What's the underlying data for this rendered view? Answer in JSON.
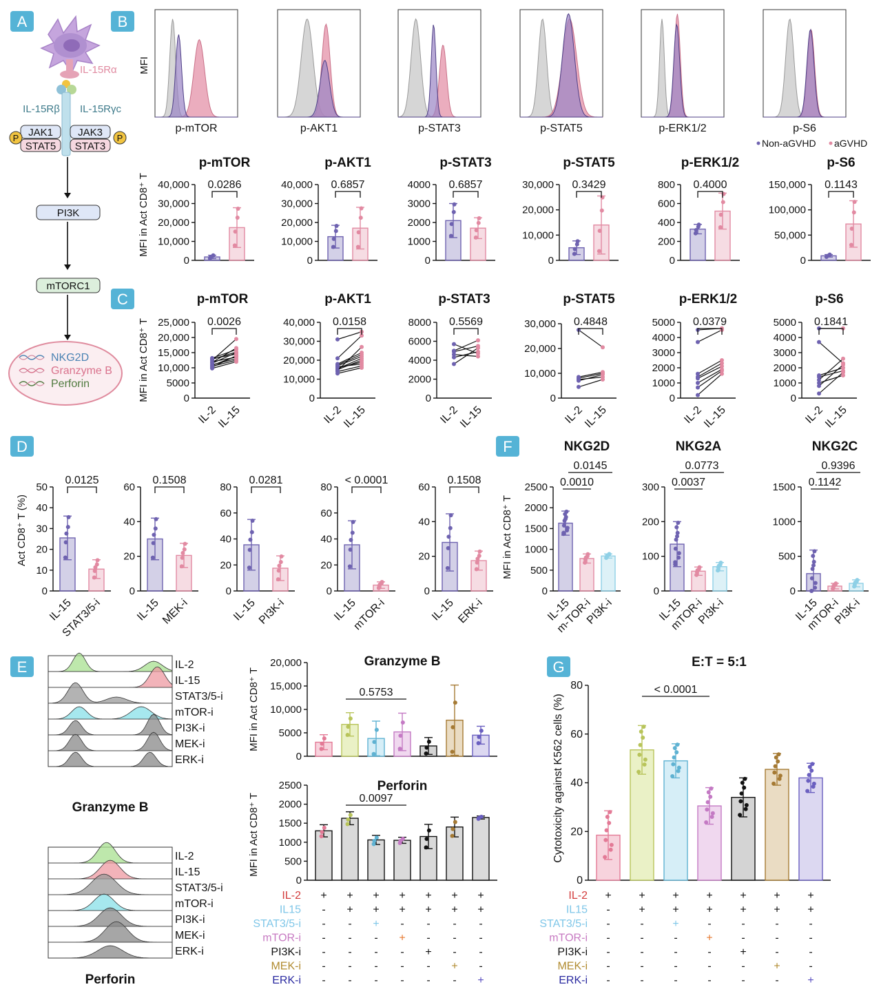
{
  "panel_letters": [
    "A",
    "B",
    "C",
    "D",
    "E",
    "F",
    "G"
  ],
  "colors": {
    "nonagvhd": "#6e62b0",
    "agvhd": "#e28aa2",
    "isotype": "#c8c8c8",
    "il2": "#e8a2b7",
    "il15": "#d3df9a",
    "stat": "#8fd0e6",
    "mtor": "#d9a7d8",
    "pi3k": "#222222",
    "mek": "#b8893e",
    "erk": "#7b6fc4",
    "panel_badge": "#55b3d6"
  },
  "panel_a": {
    "il15ra": "IL-15Rα",
    "il15rb": "IL-15Rβ",
    "il15rgc": "IL-15Rγc",
    "jak1": "JAK1",
    "jak3": "JAK3",
    "stat5": "STAT5",
    "stat3": "STAT3",
    "p": "P",
    "pi3k": "PI3K",
    "mtorc1": "mTORC1",
    "genes": [
      "NKG2D",
      "Granzyme B",
      "Perforin"
    ]
  },
  "panel_b": {
    "hist_ylabel": "MFI",
    "legend": [
      "Non-aGVHD",
      "aGVHD"
    ],
    "bar_ylabel": "MFI in Act CD8⁺ T",
    "hist_labels": [
      "p-mTOR",
      "p-AKT1",
      "p-STAT3",
      "p-STAT5",
      "p-ERK1/2",
      "p-S6"
    ]
  },
  "panel_c": {
    "ylabel": "MFI in Act CD8⁺ T",
    "xcats": [
      "IL-2",
      "IL-15"
    ]
  },
  "panel_d": {
    "ylabel": "Act CD8⁺ T (%)"
  },
  "panel_e": {
    "row_labels": [
      "IL-2",
      "IL-15",
      "STAT3/5-i",
      "mTOR-i",
      "PI3K-i",
      "MEK-i",
      "ERK-i"
    ],
    "hist_titles": [
      "Granzyme B",
      "Perforin"
    ],
    "ylabel": "MFI in Act CD8⁺ T",
    "matrix_rows": [
      "IL-2",
      "IL15",
      "STAT3/5-i",
      "mTOR-i",
      "PI3K-i",
      "MEK-i",
      "ERK-i"
    ],
    "matrix": [
      [
        "+",
        "+",
        "+",
        "+",
        "+",
        "+",
        "+"
      ],
      [
        "-",
        "+",
        "+",
        "+",
        "+",
        "+",
        "+"
      ],
      [
        "-",
        "-",
        "+",
        "-",
        "-",
        "-",
        "-"
      ],
      [
        "-",
        "-",
        "-",
        "+",
        "-",
        "-",
        "-"
      ],
      [
        "-",
        "-",
        "-",
        "-",
        "+",
        "-",
        "-"
      ],
      [
        "-",
        "-",
        "-",
        "-",
        "-",
        "+",
        "-"
      ],
      [
        "-",
        "-",
        "-",
        "-",
        "-",
        "-",
        "+"
      ]
    ]
  },
  "panel_f": {
    "ylabel": "MFI in Act CD8⁺ T"
  },
  "panel_g": {
    "title": "E:T = 5:1",
    "ylabel": "Cytotoxicity against K562 cells (%)"
  },
  "chart_data": [
    {
      "id": "B-mTOR",
      "type": "bar",
      "title": "p-mTOR",
      "categories": [
        "Non-aGVHD",
        "aGVHD"
      ],
      "values": [
        1800,
        17300
      ],
      "errors": [
        900,
        10500
      ],
      "ylim": [
        0,
        40000
      ],
      "yticks": [
        "0",
        "10,000",
        "20,000",
        "30,000",
        "40,000"
      ],
      "annotations": [
        "0.0286"
      ]
    },
    {
      "id": "B-AKT1",
      "type": "bar",
      "title": "p-AKT1",
      "categories": [
        "Non-aGVHD",
        "aGVHD"
      ],
      "values": [
        12500,
        17000
      ],
      "errors": [
        6000,
        11000
      ],
      "ylim": [
        0,
        40000
      ],
      "yticks": [
        "0",
        "10,000",
        "20,000",
        "30,000",
        "40,000"
      ],
      "annotations": [
        "0.6857"
      ]
    },
    {
      "id": "B-STAT3",
      "type": "bar",
      "title": "p-STAT3",
      "categories": [
        "Non-aGVHD",
        "aGVHD"
      ],
      "values": [
        2100,
        1700
      ],
      "errors": [
        900,
        550
      ],
      "ylim": [
        0,
        4000
      ],
      "yticks": [
        "0",
        "1000",
        "2000",
        "3000",
        "4000"
      ],
      "annotations": [
        "0.6857"
      ]
    },
    {
      "id": "B-STAT5",
      "type": "bar",
      "title": "p-STAT5",
      "categories": [
        "Non-aGVHD",
        "aGVHD"
      ],
      "values": [
        5000,
        14000
      ],
      "errors": [
        2700,
        11500
      ],
      "ylim": [
        0,
        30000
      ],
      "yticks": [
        "0",
        "10,000",
        "20,000",
        "30,000"
      ],
      "annotations": [
        "0.3429"
      ]
    },
    {
      "id": "B-ERK",
      "type": "bar",
      "title": "p-ERK1/2",
      "categories": [
        "Non-aGVHD",
        "aGVHD"
      ],
      "values": [
        330,
        520
      ],
      "errors": [
        50,
        190
      ],
      "ylim": [
        0,
        800
      ],
      "yticks": [
        "0",
        "200",
        "400",
        "600",
        "800"
      ],
      "annotations": [
        "0.4000"
      ]
    },
    {
      "id": "B-S6",
      "type": "bar",
      "title": "p-S6",
      "categories": [
        "Non-aGVHD",
        "aGVHD"
      ],
      "values": [
        9000,
        72000
      ],
      "errors": [
        2500,
        46000
      ],
      "ylim": [
        0,
        150000
      ],
      "yticks": [
        "0",
        "50,000",
        "100,000",
        "150,000"
      ],
      "annotations": [
        "0.1143"
      ]
    },
    {
      "id": "C-mTOR",
      "type": "line",
      "title": "p-mTOR",
      "categories": [
        "IL-2",
        "IL-15"
      ],
      "ylim": [
        0,
        25000
      ],
      "yticks": [
        "0",
        "5000",
        "10,000",
        "15,000",
        "20,000",
        "25,000"
      ],
      "annotations": [
        "0.0026"
      ],
      "pairs": [
        [
          9800,
          12000
        ],
        [
          10200,
          14000
        ],
        [
          11000,
          13000
        ],
        [
          11500,
          15000
        ],
        [
          12000,
          13500
        ],
        [
          12500,
          19500
        ],
        [
          13000,
          14500
        ],
        [
          10500,
          12500
        ],
        [
          11800,
          16500
        ],
        [
          12800,
          15200
        ],
        [
          10800,
          13800
        ],
        [
          13200,
          16000
        ]
      ]
    },
    {
      "id": "C-AKT1",
      "type": "line",
      "title": "p-AKT1",
      "categories": [
        "IL-2",
        "IL-15"
      ],
      "ylim": [
        0,
        40000
      ],
      "yticks": [
        "0",
        "10,000",
        "20,000",
        "30,000",
        "40,000"
      ],
      "annotations": [
        "0.0158"
      ],
      "pairs": [
        [
          31000,
          35000
        ],
        [
          21000,
          33000
        ],
        [
          17000,
          22000
        ],
        [
          15000,
          20000
        ],
        [
          16000,
          19000
        ],
        [
          14000,
          17000
        ],
        [
          18000,
          24000
        ],
        [
          13000,
          16000
        ],
        [
          15500,
          21000
        ],
        [
          16500,
          18000
        ],
        [
          14500,
          27000
        ],
        [
          17500,
          23000
        ]
      ]
    },
    {
      "id": "C-STAT3",
      "type": "line",
      "title": "p-STAT3",
      "categories": [
        "IL-2",
        "IL-15"
      ],
      "ylim": [
        0,
        8000
      ],
      "yticks": [
        "0",
        "2000",
        "4000",
        "6000",
        "8000"
      ],
      "annotations": [
        "0.5569"
      ],
      "pairs": [
        [
          3600,
          5300
        ],
        [
          4600,
          4400
        ],
        [
          5000,
          6100
        ],
        [
          4300,
          4900
        ],
        [
          5700,
          4700
        ],
        [
          4900,
          5500
        ]
      ]
    },
    {
      "id": "C-STAT5",
      "type": "line",
      "title": "p-STAT5",
      "categories": [
        "IL-2",
        "IL-15"
      ],
      "ylim": [
        0,
        30000
      ],
      "yticks": [
        "0",
        "10,000",
        "20,000",
        "30,000"
      ],
      "annotations": [
        "0.4848"
      ],
      "pairs": [
        [
          27500,
          20500
        ],
        [
          4500,
          7500
        ],
        [
          7000,
          9500
        ],
        [
          8000,
          10000
        ],
        [
          8500,
          10500
        ],
        [
          7500,
          8500
        ]
      ]
    },
    {
      "id": "C-ERK",
      "type": "line",
      "title": "p-ERK1/2",
      "categories": [
        "IL-2",
        "IL-15"
      ],
      "ylim": [
        0,
        5000
      ],
      "yticks": [
        "0",
        "1000",
        "2000",
        "3000",
        "4000",
        "5000"
      ],
      "annotations": [
        "0.0379"
      ],
      "pairs": [
        [
          4500,
          4600
        ],
        [
          3700,
          4500
        ],
        [
          1600,
          2500
        ],
        [
          1300,
          2100
        ],
        [
          700,
          1800
        ],
        [
          200,
          1600
        ],
        [
          1400,
          2300
        ],
        [
          1000,
          1900
        ]
      ]
    },
    {
      "id": "C-S6",
      "type": "line",
      "title": "p-S6",
      "categories": [
        "IL-2",
        "IL-15"
      ],
      "ylim": [
        0,
        5000
      ],
      "yticks": [
        "0",
        "1000",
        "2000",
        "3000",
        "4000",
        "5000"
      ],
      "annotations": [
        "0.1841"
      ],
      "pairs": [
        [
          4600,
          4600
        ],
        [
          3700,
          2300
        ],
        [
          1500,
          2000
        ],
        [
          1400,
          1800
        ],
        [
          800,
          2200
        ],
        [
          300,
          1700
        ],
        [
          1200,
          2600
        ],
        [
          1000,
          1500
        ]
      ]
    },
    {
      "id": "D-STAT",
      "type": "bar",
      "categories": [
        "IL-15",
        "STAT3/5-i"
      ],
      "values": [
        25.5,
        10.5
      ],
      "errors": [
        10.5,
        4.5
      ],
      "ylim": [
        0,
        50
      ],
      "yticks": [
        "0",
        "10",
        "20",
        "30",
        "40",
        "50"
      ],
      "annotations": [
        "0.0125"
      ]
    },
    {
      "id": "D-MEK",
      "type": "bar",
      "categories": [
        "IL-15",
        "MEK-i"
      ],
      "values": [
        30,
        20.5
      ],
      "errors": [
        12,
        7
      ],
      "ylim": [
        0,
        60
      ],
      "yticks": [
        "0",
        "20",
        "40",
        "60"
      ],
      "annotations": [
        "0.1508"
      ]
    },
    {
      "id": "D-PI3K",
      "type": "bar",
      "categories": [
        "IL-15",
        "PI3K-i"
      ],
      "values": [
        35.5,
        17.5
      ],
      "errors": [
        19.5,
        9.5
      ],
      "ylim": [
        0,
        80
      ],
      "yticks": [
        "0",
        "20",
        "40",
        "60",
        "80"
      ],
      "annotations": [
        "0.0281"
      ]
    },
    {
      "id": "D-mTOR",
      "type": "bar",
      "categories": [
        "IL-15",
        "mTOR-i"
      ],
      "values": [
        35.5,
        4.5
      ],
      "errors": [
        18.5,
        2.5
      ],
      "ylim": [
        0,
        80
      ],
      "yticks": [
        "0",
        "20",
        "40",
        "60",
        "80"
      ],
      "annotations": [
        "< 0.0001"
      ]
    },
    {
      "id": "D-ERK",
      "type": "bar",
      "categories": [
        "IL-15",
        "ERK-i"
      ],
      "values": [
        28,
        17.5
      ],
      "errors": [
        16.5,
        5.5
      ],
      "ylim": [
        0,
        60
      ],
      "yticks": [
        "0",
        "20",
        "40",
        "60"
      ],
      "annotations": [
        "0.1508"
      ]
    },
    {
      "id": "F-NKG2D",
      "type": "bar",
      "title": "NKG2D",
      "categories": [
        "IL-15",
        "m-TOR-i",
        "PI3K-i"
      ],
      "values": [
        1630,
        780,
        840
      ],
      "errors": [
        290,
        110,
        50
      ],
      "ylim": [
        0,
        2500
      ],
      "yticks": [
        "0",
        "500",
        "1000",
        "1500",
        "2000",
        "2500"
      ],
      "annotations": [
        "0.0010",
        "0.0145"
      ]
    },
    {
      "id": "F-NKG2A",
      "type": "bar",
      "title": "NKG2A",
      "categories": [
        "IL-15",
        "mTOR-i",
        "PI3K-i"
      ],
      "values": [
        135,
        57,
        70
      ],
      "errors": [
        65,
        12,
        12
      ],
      "ylim": [
        0,
        300
      ],
      "yticks": [
        "0",
        "100",
        "200",
        "300"
      ],
      "annotations": [
        "0.0037",
        "0.0773"
      ]
    },
    {
      "id": "F-NKG2C",
      "type": "bar",
      "title": "NKG2C",
      "categories": [
        "IL-15",
        "mTOR-i",
        "PI3K-i"
      ],
      "values": [
        250,
        70,
        110
      ],
      "errors": [
        340,
        40,
        50
      ],
      "ylim": [
        0,
        1500
      ],
      "yticks": [
        "0",
        "500",
        "1000",
        "1500"
      ],
      "annotations": [
        "0.1142",
        "0.9396"
      ]
    },
    {
      "id": "E-GzmB",
      "type": "bar",
      "title": "Granzyme B",
      "categories": [
        "IL-2",
        "IL15",
        "STAT3/5-i",
        "mTOR-i",
        "PI3K-i",
        "MEK-i",
        "ERK-i"
      ],
      "values": [
        3000,
        6800,
        3800,
        5200,
        2200,
        7700,
        4500
      ],
      "errors": [
        1600,
        2500,
        3700,
        4000,
        1800,
        7500,
        1900
      ],
      "ylim": [
        0,
        20000
      ],
      "yticks": [
        "0",
        "5000",
        "10,000",
        "15,000",
        "20,000"
      ],
      "annotations": [
        "0.5753"
      ]
    },
    {
      "id": "E-Perforin",
      "type": "bar",
      "title": "Perforin",
      "categories": [
        "IL-2",
        "IL15",
        "STAT3/5-i",
        "mTOR-i",
        "PI3K-i",
        "MEK-i",
        "ERK-i"
      ],
      "values": [
        1300,
        1630,
        1060,
        1050,
        1150,
        1400,
        1650
      ],
      "errors": [
        160,
        170,
        120,
        80,
        320,
        260,
        40
      ],
      "ylim": [
        0,
        2500
      ],
      "yticks": [
        "0",
        "500",
        "1000",
        "1500",
        "2000",
        "2500"
      ],
      "annotations": [
        "0.0097"
      ]
    },
    {
      "id": "G",
      "type": "bar",
      "title": "E:T = 5:1",
      "categories": [
        "IL-2",
        "IL15",
        "STAT3/5-i",
        "mTOR-i",
        "PI3K-i",
        "MEK-i",
        "ERK-i"
      ],
      "values": [
        18.5,
        53.5,
        49,
        30.5,
        34,
        45.5,
        42
      ],
      "errors": [
        10,
        10,
        7,
        7.5,
        8,
        6.5,
        6
      ],
      "ylim": [
        0,
        80
      ],
      "yticks": [
        "0",
        "20",
        "40",
        "60",
        "80"
      ],
      "ylabel": "Cytotoxicity against K562 cells (%)",
      "annotations": [
        "< 0.0001"
      ]
    }
  ]
}
